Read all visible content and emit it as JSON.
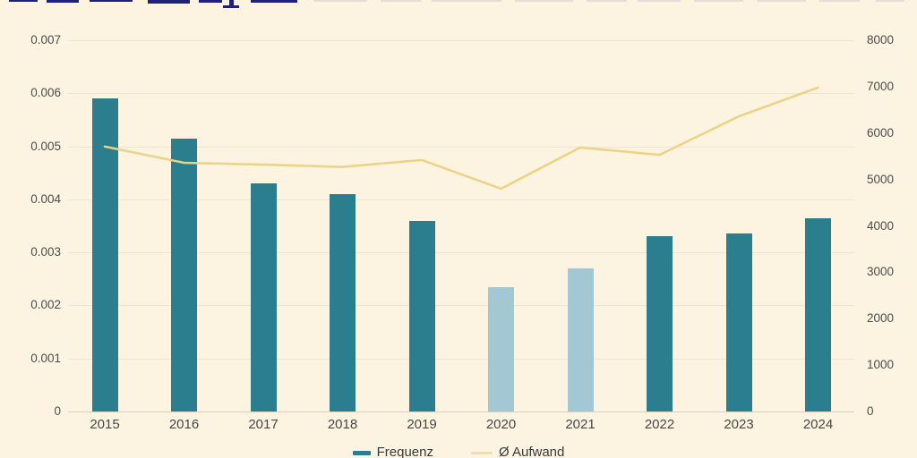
{
  "colors": {
    "background": "#fcf3e1",
    "bar": "#2a7e8d",
    "bar_highlight": "#a3c7d3",
    "line": "#ecd283",
    "line_swatch": "#ecdfae",
    "grid": "#eee6d4",
    "axis_line": "#d9d2c1",
    "tick_text": "#4c4c4c",
    "title_fragment": "#20207a"
  },
  "legend": {
    "items": [
      {
        "label": "Frequenz",
        "series": "bar"
      },
      {
        "label": "Ø Aufwand",
        "series": "line"
      }
    ]
  },
  "chart_data": {
    "type": "bar",
    "title": "",
    "categories": [
      "2015",
      "2016",
      "2017",
      "2018",
      "2019",
      "2020",
      "2021",
      "2022",
      "2023",
      "2024"
    ],
    "series": [
      {
        "name": "Frequenz",
        "type": "bar",
        "axis": "left",
        "values": [
          0.0059,
          0.00515,
          0.0043,
          0.0041,
          0.0036,
          0.00235,
          0.0027,
          0.0033,
          0.00335,
          0.00365
        ]
      },
      {
        "name": "Ø Aufwand",
        "type": "line",
        "axis": "right",
        "values": [
          5710,
          5360,
          5320,
          5270,
          5420,
          4800,
          5690,
          5530,
          6360,
          6980
        ]
      }
    ],
    "highlighted_categories": [
      "2020",
      "2021"
    ],
    "left_axis": {
      "min": 0,
      "max": 0.007,
      "step": 0.001,
      "tick_labels": [
        "0",
        "0.001",
        "0.002",
        "0.003",
        "0.004",
        "0.005",
        "0.006",
        "0.007"
      ]
    },
    "right_axis": {
      "min": 0,
      "max": 8000,
      "step": 1000,
      "tick_labels": [
        "0",
        "1000",
        "2000",
        "3000",
        "4000",
        "5000",
        "6000",
        "7000",
        "8000"
      ]
    },
    "grid": true,
    "legend_position": "bottom"
  }
}
